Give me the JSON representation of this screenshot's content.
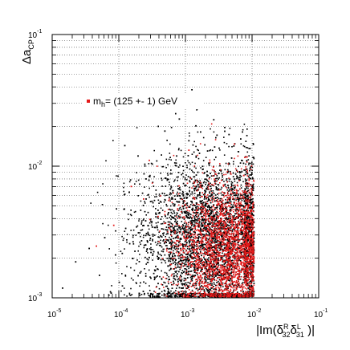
{
  "chart_data": {
    "type": "scatter",
    "log_x": true,
    "log_y": true,
    "xlim": [
      1e-05,
      0.1
    ],
    "ylim": [
      0.001,
      0.1
    ],
    "grid": true,
    "legend_position": "top-left",
    "legend_label": {
      "main": "m",
      "sub": "h",
      "rest": "= (125 +- 1) GeV"
    },
    "x_ticks": [
      {
        "base": "10",
        "exp": "-5"
      },
      {
        "base": "10",
        "exp": "-4"
      },
      {
        "base": "10",
        "exp": "-3"
      },
      {
        "base": "10",
        "exp": "-2"
      },
      {
        "base": "10",
        "exp": "-1"
      }
    ],
    "y_ticks": [
      {
        "base": "10",
        "exp": "-3"
      },
      {
        "base": "10",
        "exp": "-2"
      },
      {
        "base": "10",
        "exp": "-1"
      }
    ],
    "xlabel": {
      "pre": "|Im(",
      "d1": "δ",
      "d1_sup": "R",
      "d1_sub": "32",
      "d2": "δ",
      "d2_sup": "L",
      "d2_sub": "31",
      "post": " )|"
    },
    "ylabel": {
      "main": "Δa",
      "sub": "CP"
    },
    "series": [
      {
        "color": "#000000",
        "cluster": {
          "x_log_center": -2.6,
          "x_log_sd": 0.55,
          "y_log_center": -2.55,
          "y_log_sd": 0.3
        },
        "points": [
          [
            0.00012,
            0.0062
          ],
          [
            9e-05,
            0.0048
          ],
          [
            0.00025,
            0.0081
          ],
          [
            0.00018,
            0.0035
          ],
          [
            6e-05,
            0.0029
          ],
          [
            0.00031,
            0.0105
          ],
          [
            0.00044,
            0.0063
          ],
          [
            0.00072,
            0.0121
          ],
          [
            0.0011,
            0.0158
          ],
          [
            0.0015,
            0.0091
          ],
          [
            0.0021,
            0.0132
          ],
          [
            0.0029,
            0.0174
          ],
          [
            0.0038,
            0.0199
          ],
          [
            0.0052,
            0.0144
          ],
          [
            0.0068,
            0.0112
          ],
          [
            0.0081,
            0.0096
          ],
          [
            0.0093,
            0.0073
          ],
          [
            0.0086,
            0.0052
          ],
          [
            0.0061,
            0.0041
          ],
          [
            0.0045,
            0.0033
          ],
          [
            0.0033,
            0.0026
          ],
          [
            0.0024,
            0.0021
          ],
          [
            0.0017,
            0.0017
          ],
          [
            0.0012,
            0.0014
          ],
          [
            0.00085,
            0.0012
          ],
          [
            0.00055,
            0.0011
          ],
          [
            0.00038,
            0.0013
          ],
          [
            0.00021,
            0.0016
          ],
          [
            1.4e-05,
            0.0012
          ],
          [
            2.2e-05,
            0.0019
          ],
          [
            3.5e-05,
            0.0024
          ],
          [
            5e-05,
            0.0015
          ],
          [
            7.5e-05,
            0.0011
          ],
          [
            0.00011,
            0.0022
          ],
          [
            0.00016,
            0.0027
          ],
          [
            0.00027,
            0.0031
          ],
          [
            0.0004,
            0.0045
          ],
          [
            0.00062,
            0.0058
          ],
          [
            0.00095,
            0.0072
          ],
          [
            0.0013,
            0.0084
          ],
          [
            0.0019,
            0.0066
          ],
          [
            0.0027,
            0.0055
          ],
          [
            0.0036,
            0.0047
          ],
          [
            0.0049,
            0.0068
          ],
          [
            0.0064,
            0.0083
          ],
          [
            0.0077,
            0.0061
          ],
          [
            0.0089,
            0.0039
          ],
          [
            0.0072,
            0.0028
          ],
          [
            0.0055,
            0.0022
          ],
          [
            0.0042,
            0.0018
          ],
          [
            0.0031,
            0.0015
          ],
          [
            0.0023,
            0.0013
          ],
          [
            0.0016,
            0.0011
          ],
          [
            0.00012,
            0.0145
          ],
          [
            0.00019,
            0.0121
          ],
          [
            0.00048,
            0.0187
          ],
          [
            0.00079,
            0.0231
          ],
          [
            0.0014,
            0.0205
          ],
          [
            0.0026,
            0.0228
          ],
          [
            0.0044,
            0.0176
          ],
          [
            0.0066,
            0.0163
          ],
          [
            0.0091,
            0.0138
          ],
          [
            0.0101,
            0.0118
          ],
          [
            0.0097,
            0.0088
          ]
        ]
      },
      {
        "color": "#e41a1a",
        "cluster": {
          "x_log_center": -2.4,
          "x_log_sd": 0.38,
          "y_log_center": -2.62,
          "y_log_sd": 0.25
        },
        "points": [
          [
            0.0025,
            0.0041
          ],
          [
            0.0035,
            0.0052
          ],
          [
            0.0047,
            0.0063
          ],
          [
            0.0058,
            0.0045
          ],
          [
            0.0069,
            0.0037
          ],
          [
            0.0081,
            0.0029
          ],
          [
            0.0042,
            0.0026
          ],
          [
            0.0031,
            0.0021
          ],
          [
            0.0022,
            0.0017
          ],
          [
            0.0016,
            0.0014
          ],
          [
            0.0012,
            0.0019
          ],
          [
            0.00091,
            0.0024
          ],
          [
            0.0006,
            0.0033
          ],
          [
            0.00038,
            0.0042
          ],
          [
            0.00023,
            0.0057
          ],
          [
            0.00015,
            0.0071
          ],
          [
            8.2e-05,
            0.0036
          ],
          [
            4.5e-05,
            0.0025
          ],
          [
            0.00028,
            0.0112
          ],
          [
            0.0011,
            0.0134
          ],
          [
            0.0053,
            0.0149
          ],
          [
            0.0076,
            0.0118
          ],
          [
            0.0088,
            0.0079
          ],
          [
            0.0064,
            0.0068
          ],
          [
            0.0039,
            0.0031
          ],
          [
            0.0028,
            0.0012
          ],
          [
            0.0019,
            0.0011
          ],
          [
            0.0013,
            0.0013
          ]
        ]
      }
    ]
  }
}
